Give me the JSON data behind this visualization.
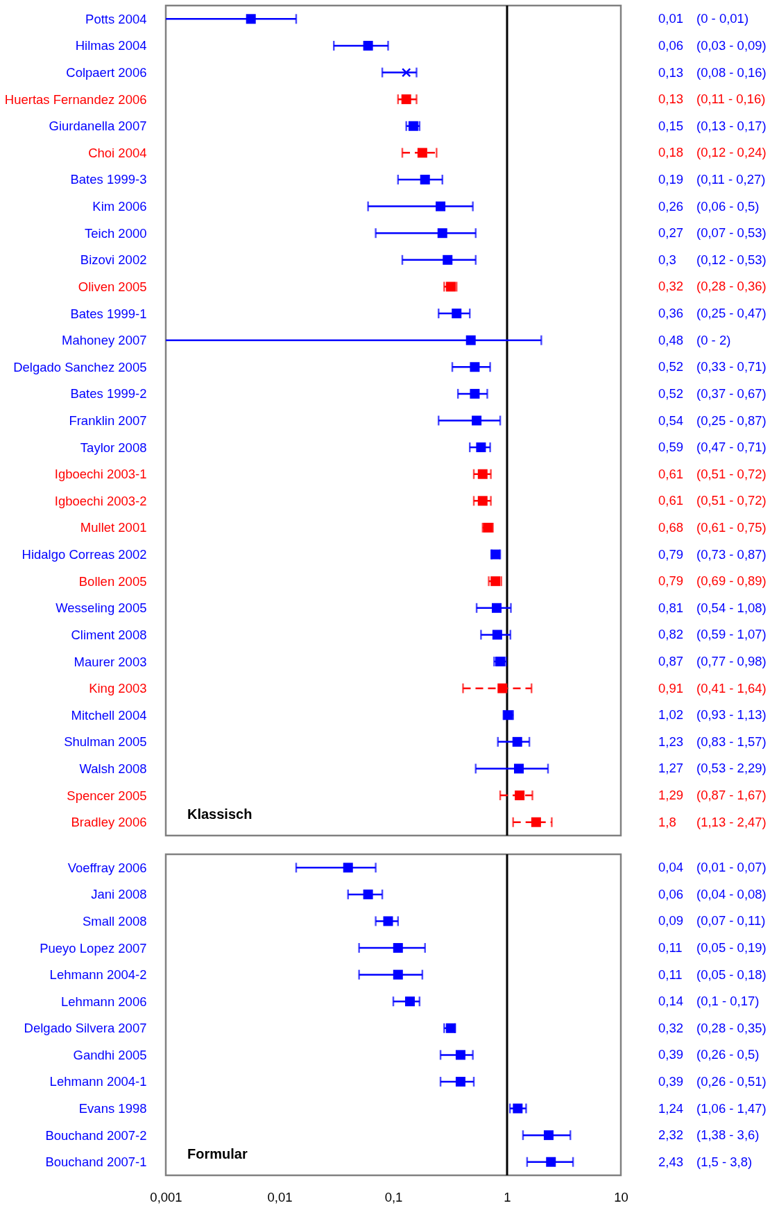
{
  "chart_data": [
    {
      "type": "scatter",
      "title": "Klassisch",
      "orientation": "horizontal",
      "log": "x",
      "xlim": [
        0.001,
        10
      ],
      "tick_labels": "y",
      "categories": [
        "Potts 2004",
        "Hilmas 2004",
        "Colpaert 2006",
        "Huertas Fernandez 2006",
        "Giurdanella 2007",
        "Choi 2004",
        "Bates 1999-3",
        "Kim 2006",
        "Teich 2000",
        "Bizovi 2002",
        "Oliven 2005",
        "Bates 1999-1",
        "Mahoney 2007",
        "Delgado Sanchez 2005",
        "Bates 1999-2",
        "Franklin 2007",
        "Taylor 2008",
        "Igboechi 2003-1",
        "Igboechi 2003-2",
        "Mullet 2001",
        "Hidalgo Correas 2002",
        "Bollen 2005",
        "Wesseling 2005",
        "Climent 2008",
        "Maurer 2003",
        "King 2003",
        "Mitchell 2004",
        "Shulman 2005",
        "Walsh 2008",
        "Spencer 2005",
        "Bradley 2006"
      ],
      "ref_lines": [
        {
          "axis": "x",
          "value": 1,
          "color": "#000000"
        }
      ],
      "series": [
        {
          "color": "#0000ff",
          "marker": "square",
          "line_style": "solid",
          "values": [
            0.0056,
            0.06,
            null,
            null,
            0.15,
            null,
            0.19,
            0.26,
            0.27,
            0.3,
            null,
            0.36,
            0.48,
            0.52,
            0.52,
            0.54,
            0.59,
            null,
            null,
            null,
            0.79,
            null,
            0.81,
            0.82,
            0.87,
            null,
            1.02,
            1.23,
            1.27,
            null,
            null
          ],
          "errors": [
            [
              0.001,
              0.014
            ],
            [
              0.03,
              0.09
            ],
            null,
            null,
            [
              0.13,
              0.17
            ],
            null,
            [
              0.11,
              0.27
            ],
            [
              0.06,
              0.5
            ],
            [
              0.07,
              0.53
            ],
            [
              0.12,
              0.53
            ],
            null,
            [
              0.25,
              0.47
            ],
            [
              0.001,
              2
            ],
            [
              0.33,
              0.71
            ],
            [
              0.37,
              0.67
            ],
            [
              0.25,
              0.87
            ],
            [
              0.47,
              0.71
            ],
            null,
            null,
            null,
            [
              0.73,
              0.87
            ],
            null,
            [
              0.54,
              1.08
            ],
            [
              0.59,
              1.07
            ],
            [
              0.77,
              0.98
            ],
            null,
            [
              0.93,
              1.13
            ],
            [
              0.83,
              1.57
            ],
            [
              0.53,
              2.29
            ],
            null,
            null
          ],
          "value_labels": [
            "0,01 (0 - 0,01)",
            "0,06 (0,03 - 0,09)",
            null,
            null,
            "0,15 (0,13 - 0,17)",
            null,
            "0,19 (0,11 - 0,27)",
            "0,26 (0,06 - 0,5)",
            "0,27 (0,07 - 0,53)",
            "0,3 (0,12 - 0,53)",
            null,
            "0,36 (0,25 - 0,47)",
            "0,48 (0 - 2)",
            "0,52 (0,33 - 0,71)",
            "0,52 (0,37 - 0,67)",
            "0,54 (0,25 - 0,87)",
            "0,59 (0,47 - 0,71)",
            null,
            null,
            null,
            "0,79 (0,73 - 0,87)",
            null,
            "0,81 (0,54 - 1,08)",
            "0,82 (0,59 - 1,07)",
            "0,87 (0,77 - 0,98)",
            null,
            "1,02 (0,93 - 1,13)",
            "1,23 (0,83 - 1,57)",
            "1,27 (0,53 - 2,29)",
            null,
            null
          ]
        },
        {
          "color": "#0000ff",
          "marker": "cross",
          "line_style": "solid",
          "values": [
            null,
            null,
            0.13,
            null,
            null,
            null,
            null,
            null,
            null,
            null,
            null,
            null,
            null,
            null,
            null,
            null,
            null,
            null,
            null,
            null,
            null,
            null,
            null,
            null,
            null,
            null,
            null,
            null,
            null,
            null,
            null
          ],
          "errors": [
            null,
            null,
            [
              0.08,
              0.16
            ],
            null,
            null,
            null,
            null,
            null,
            null,
            null,
            null,
            null,
            null,
            null,
            null,
            null,
            null,
            null,
            null,
            null,
            null,
            null,
            null,
            null,
            null,
            null,
            null,
            null,
            null,
            null,
            null
          ],
          "value_labels": [
            null,
            null,
            "0,13 (0,08 - 0,16)",
            null,
            null,
            null,
            null,
            null,
            null,
            null,
            null,
            null,
            null,
            null,
            null,
            null,
            null,
            null,
            null,
            null,
            null,
            null,
            null,
            null,
            null,
            null,
            null,
            null,
            null,
            null,
            null
          ]
        },
        {
          "color": "#ff0000",
          "marker": "square",
          "line_style": "dashed",
          "values": [
            null,
            null,
            null,
            0.13,
            null,
            0.18,
            null,
            null,
            null,
            null,
            0.32,
            null,
            null,
            null,
            null,
            null,
            null,
            0.61,
            0.61,
            0.68,
            null,
            0.79,
            null,
            null,
            null,
            0.91,
            null,
            null,
            null,
            1.29,
            1.8
          ],
          "errors": [
            null,
            null,
            null,
            [
              0.11,
              0.16
            ],
            null,
            [
              0.12,
              0.24
            ],
            null,
            null,
            null,
            null,
            [
              0.28,
              0.36
            ],
            null,
            null,
            null,
            null,
            null,
            null,
            [
              0.51,
              0.72
            ],
            [
              0.51,
              0.72
            ],
            [
              0.61,
              0.75
            ],
            null,
            [
              0.69,
              0.89
            ],
            null,
            null,
            null,
            [
              0.41,
              1.64
            ],
            null,
            null,
            null,
            [
              0.87,
              1.67
            ],
            [
              1.13,
              2.47
            ]
          ],
          "value_labels": [
            null,
            null,
            null,
            "0,13 (0,11 - 0,16)",
            null,
            "0,18 (0,12 - 0,24)",
            null,
            null,
            null,
            null,
            "0,32 (0,28 - 0,36)",
            null,
            null,
            null,
            null,
            null,
            null,
            "0,61 (0,51 - 0,72)",
            "0,61 (0,51 - 0,72)",
            "0,68 (0,61 - 0,75)",
            null,
            "0,79 (0,69 - 0,89)",
            null,
            null,
            null,
            "0,91 (0,41 - 1,64)",
            null,
            null,
            null,
            "1,29 (0,87 - 1,67)",
            "1,8 (1,13 - 2,47)"
          ]
        }
      ]
    },
    {
      "type": "scatter",
      "title": "Formular",
      "orientation": "horizontal",
      "log": "x",
      "xlim": [
        0.001,
        10
      ],
      "xticks": [
        {
          "value": 0.001,
          "label": "0,001"
        },
        {
          "value": 0.01,
          "label": "0,01"
        },
        {
          "value": 0.1,
          "label": "0,1"
        },
        1,
        10
      ],
      "categories": [
        "Voeffray 2006",
        "Jani 2008",
        "Small 2008",
        "Pueyo Lopez 2007",
        "Lehmann 2004-2",
        "Lehmann 2006",
        "Delgado Silvera 2007",
        "Gandhi 2005",
        "Lehmann 2004-1",
        "Evans 1998",
        "Bouchand 2007-2",
        "Bouchand 2007-1"
      ],
      "ref_lines": [
        {
          "axis": "x",
          "value": 1,
          "color": "#000000"
        }
      ],
      "series": [
        {
          "color": "#0000ff",
          "marker": "square",
          "line_style": "solid",
          "values": [
            0.04,
            0.06,
            0.09,
            0.11,
            0.11,
            0.14,
            0.32,
            0.39,
            0.39,
            1.24,
            2.32,
            2.43
          ],
          "errors": [
            [
              0.014,
              0.07
            ],
            [
              0.04,
              0.08
            ],
            [
              0.07,
              0.11
            ],
            [
              0.05,
              0.19
            ],
            [
              0.05,
              0.18
            ],
            [
              0.1,
              0.17
            ],
            [
              0.28,
              0.35
            ],
            [
              0.26,
              0.5
            ],
            [
              0.26,
              0.51
            ],
            [
              1.06,
              1.47
            ],
            [
              1.38,
              3.6
            ],
            [
              1.5,
              3.8
            ]
          ],
          "value_labels": [
            "0,04 (0,01 - 0,07)",
            "0,06 (0,04 - 0,08)",
            "0,09 (0,07 - 0,11)",
            "0,11 (0,05 - 0,19)",
            "0,11 (0,05 - 0,18)",
            "0,14 (0,1 - 0,17)",
            "0,32 (0,28 - 0,35)",
            "0,39 (0,26 - 0,5)",
            "0,39 (0,26 - 0,51)",
            "1,24 (1,06 - 1,47)",
            "2,32 (1,38 - 3,6)",
            "2,43 (1,5 - 3,8)"
          ]
        }
      ]
    }
  ]
}
